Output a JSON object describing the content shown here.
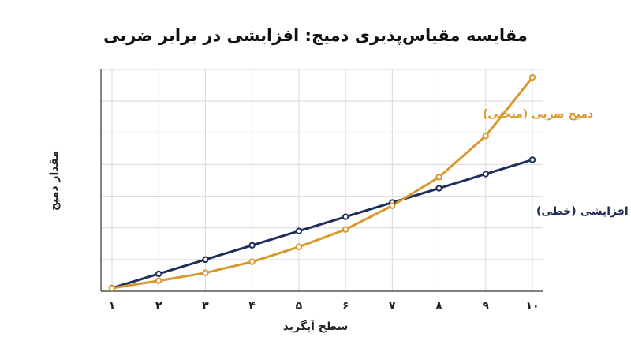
{
  "chart_data": {
    "type": "line",
    "title": "مقایسه مقیاس‌پذیری دمیج: افزایشی در برابر ضربی",
    "xlabel": "سطح آپگرید",
    "ylabel": "مقدار دمیج",
    "x": [
      1,
      2,
      3,
      4,
      5,
      6,
      7,
      8,
      9,
      10
    ],
    "x_tick_labels": [
      "۱",
      "۲",
      "۳",
      "۴",
      "۵",
      "۶",
      "۷",
      "۸",
      "۹",
      "۱۰"
    ],
    "ylim": [
      0,
      7
    ],
    "y_ticks_labeled": false,
    "grid": true,
    "series": [
      {
        "name": "دمیج افزایشی (خطی)",
        "color": "#1f2d5a",
        "values": [
          0.1,
          0.55,
          1.0,
          1.45,
          1.9,
          2.35,
          2.8,
          3.25,
          3.7,
          4.15
        ]
      },
      {
        "name": "دمیج ضربی (منحنی)",
        "color": "#d9982e",
        "values": [
          0.1,
          0.33,
          0.58,
          0.93,
          1.4,
          1.95,
          2.7,
          3.6,
          4.9,
          6.75
        ]
      }
    ]
  }
}
